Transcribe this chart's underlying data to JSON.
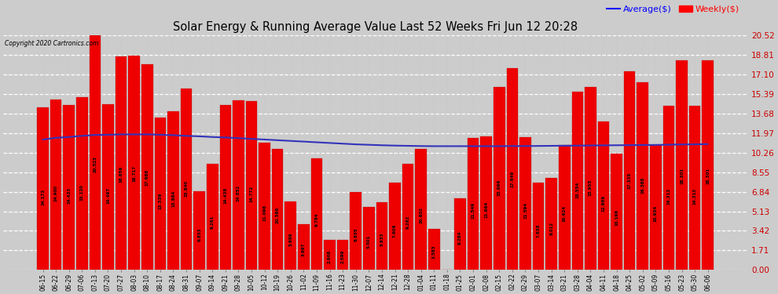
{
  "title": "Solar Energy & Running Average Value Last 52 Weeks Fri Jun 12 20:28",
  "copyright": "Copyright 2020 Cartronics.com",
  "bar_color": "#ee0000",
  "avg_line_color": "#3333bb",
  "background_color": "#cccccc",
  "grid_color": "#ffffff",
  "categories": [
    "06-15",
    "06-22",
    "06-29",
    "07-06",
    "07-13",
    "07-20",
    "07-27",
    "08-03",
    "08-10",
    "08-17",
    "08-24",
    "08-31",
    "09-07",
    "09-14",
    "09-21",
    "09-28",
    "10-05",
    "10-12",
    "10-19",
    "10-26",
    "11-02",
    "11-09",
    "11-16",
    "11-23",
    "11-30",
    "12-07",
    "12-14",
    "12-21",
    "12-28",
    "01-04",
    "01-11",
    "01-18",
    "01-25",
    "02-01",
    "02-08",
    "02-15",
    "02-22",
    "02-29",
    "03-07",
    "03-14",
    "03-21",
    "03-28",
    "04-04",
    "04-11",
    "04-18",
    "04-25",
    "05-02",
    "05-09",
    "05-16",
    "05-23",
    "05-30",
    "06-06"
  ],
  "bar_values": [
    14.173,
    14.9,
    14.433,
    15.12,
    20.523,
    14.497,
    18.659,
    18.717,
    17.988,
    13.339,
    13.884,
    15.84,
    6.853,
    9.261,
    14.438,
    14.852,
    14.772,
    11.096,
    10.586,
    5.989,
    3.997,
    9.784,
    2.608,
    2.599,
    6.835,
    5.501,
    5.933,
    7.606,
    9.262,
    10.602,
    3.583,
    0.008,
    6.284,
    11.549,
    11.664,
    15.996,
    17.649,
    11.594,
    7.638,
    8.012,
    10.924,
    15.554,
    15.955,
    12.988,
    10.196,
    17.335,
    16.388,
    10.934,
    14.313,
    18.301,
    14.313,
    18.301
  ],
  "avg_values": [
    11.4,
    11.55,
    11.62,
    11.72,
    11.8,
    11.82,
    11.85,
    11.85,
    11.85,
    11.82,
    11.78,
    11.72,
    11.68,
    11.62,
    11.58,
    11.52,
    11.46,
    11.4,
    11.34,
    11.28,
    11.22,
    11.16,
    11.1,
    11.04,
    10.98,
    10.94,
    10.9,
    10.87,
    10.85,
    10.83,
    10.82,
    10.82,
    10.82,
    10.82,
    10.82,
    10.82,
    10.83,
    10.83,
    10.84,
    10.85,
    10.86,
    10.87,
    10.88,
    10.89,
    10.9,
    10.91,
    10.92,
    10.93,
    10.95,
    10.97,
    10.98,
    11.0
  ],
  "yticks": [
    0.0,
    1.71,
    3.42,
    5.13,
    6.84,
    8.55,
    10.26,
    11.97,
    13.68,
    15.39,
    17.1,
    18.81,
    20.52
  ],
  "ylim_max": 20.52
}
